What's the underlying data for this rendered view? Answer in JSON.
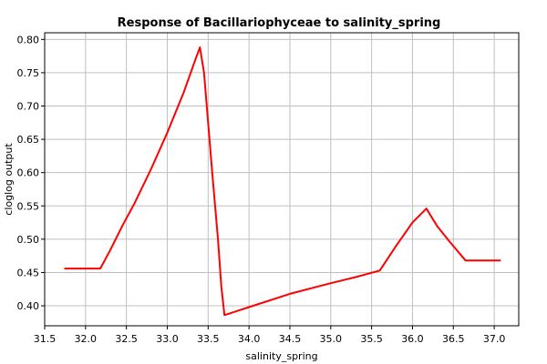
{
  "chart_data": {
    "type": "line",
    "title": "Response of Bacillariophyceae to salinity_spring",
    "xlabel": "salinity_spring",
    "ylabel": "cloglog output",
    "xlim": [
      31.5,
      37.3
    ],
    "ylim": [
      0.37,
      0.81
    ],
    "xticks": [
      "31.5",
      "32.0",
      "32.5",
      "33.0",
      "33.5",
      "34.0",
      "34.5",
      "35.0",
      "35.5",
      "36.0",
      "36.5",
      "37.0"
    ],
    "yticks": [
      "0.40",
      "0.45",
      "0.50",
      "0.55",
      "0.60",
      "0.65",
      "0.70",
      "0.75",
      "0.80"
    ],
    "grid": true,
    "series_color": "#ff0000",
    "series": [
      {
        "x": [
          31.74,
          32.18,
          32.3,
          32.45,
          32.6,
          32.8,
          33.0,
          33.2,
          33.35,
          33.4,
          33.45,
          33.55,
          33.62,
          33.66,
          33.7,
          34.0,
          34.5,
          35.0,
          35.3,
          35.6,
          35.8,
          36.0,
          36.17,
          36.3,
          36.45,
          36.65,
          36.8,
          37.08
        ],
        "y": [
          0.456,
          0.456,
          0.483,
          0.52,
          0.554,
          0.605,
          0.66,
          0.72,
          0.772,
          0.788,
          0.75,
          0.6,
          0.5,
          0.43,
          0.386,
          0.398,
          0.418,
          0.434,
          0.443,
          0.453,
          0.49,
          0.525,
          0.546,
          0.52,
          0.497,
          0.468,
          0.468,
          0.468
        ]
      }
    ]
  }
}
